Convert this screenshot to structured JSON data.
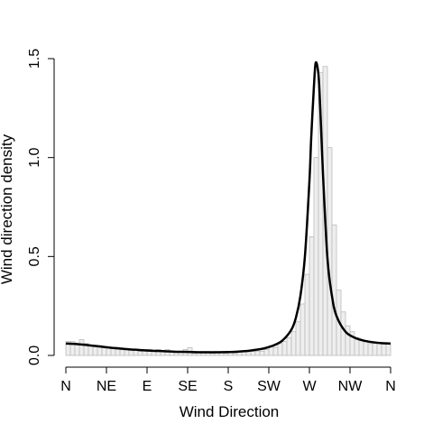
{
  "chart_data": {
    "type": "bar",
    "xlabel": "Wind Direction",
    "ylabel": "Wind direction density",
    "x_ticks": [
      "N",
      "NE",
      "E",
      "SE",
      "S",
      "SW",
      "W",
      "NW",
      "N"
    ],
    "x_tick_degrees": [
      0,
      45,
      90,
      135,
      180,
      225,
      270,
      315,
      360
    ],
    "xlim": [
      0,
      360
    ],
    "y_ticks": [
      "0.0",
      "0.5",
      "1.0",
      "1.5"
    ],
    "y_tick_values": [
      0,
      0.5,
      1.0,
      1.5
    ],
    "ylim": [
      0,
      1.5
    ],
    "histogram": {
      "bin_width_degrees": 5,
      "bin_starts": [
        0,
        5,
        10,
        15,
        20,
        25,
        30,
        35,
        40,
        45,
        50,
        55,
        60,
        65,
        70,
        75,
        80,
        85,
        90,
        95,
        100,
        105,
        110,
        115,
        120,
        125,
        130,
        135,
        140,
        145,
        150,
        155,
        160,
        165,
        170,
        175,
        180,
        185,
        190,
        195,
        200,
        205,
        210,
        215,
        220,
        225,
        230,
        235,
        240,
        245,
        250,
        255,
        260,
        265,
        270,
        275,
        280,
        285,
        290,
        295,
        300,
        305,
        310,
        315,
        320,
        325,
        330,
        335,
        340,
        345,
        350,
        355
      ],
      "densities": [
        0.07,
        0.07,
        0.06,
        0.08,
        0.06,
        0.05,
        0.05,
        0.05,
        0.04,
        0.04,
        0.04,
        0.03,
        0.03,
        0.03,
        0.03,
        0.03,
        0.02,
        0.03,
        0.03,
        0.02,
        0.03,
        0.02,
        0.03,
        0.02,
        0.02,
        0.02,
        0.03,
        0.04,
        0.01,
        0.02,
        0.02,
        0.02,
        0.01,
        0.02,
        0.02,
        0.01,
        0.02,
        0.01,
        0.02,
        0.02,
        0.02,
        0.02,
        0.02,
        0.02,
        0.03,
        0.05,
        0.04,
        0.06,
        0.07,
        0.09,
        0.12,
        0.17,
        0.26,
        0.41,
        0.6,
        1.0,
        1.43,
        1.46,
        1.05,
        0.66,
        0.33,
        0.22,
        0.15,
        0.12,
        0.09,
        0.08,
        0.07,
        0.06,
        0.06,
        0.06,
        0.06,
        0.06
      ],
      "fill": "#eeeeee",
      "stroke": "#bbbbbb"
    },
    "density_curve": {
      "x": [
        0,
        10,
        20,
        30,
        40,
        50,
        60,
        70,
        80,
        90,
        100,
        110,
        120,
        130,
        140,
        150,
        160,
        170,
        180,
        190,
        200,
        210,
        220,
        230,
        240,
        250,
        255,
        260,
        265,
        270,
        272,
        275,
        277,
        280,
        282,
        285,
        290,
        295,
        300,
        310,
        320,
        330,
        340,
        350,
        360
      ],
      "y": [
        0.06,
        0.058,
        0.054,
        0.049,
        0.044,
        0.039,
        0.035,
        0.031,
        0.028,
        0.025,
        0.023,
        0.021,
        0.019,
        0.018,
        0.017,
        0.016,
        0.016,
        0.016,
        0.017,
        0.019,
        0.022,
        0.028,
        0.036,
        0.05,
        0.075,
        0.13,
        0.19,
        0.3,
        0.5,
        0.88,
        1.1,
        1.36,
        1.48,
        1.42,
        1.25,
        0.92,
        0.49,
        0.3,
        0.2,
        0.12,
        0.09,
        0.075,
        0.067,
        0.062,
        0.06
      ],
      "color": "#000000"
    },
    "grid": false
  }
}
